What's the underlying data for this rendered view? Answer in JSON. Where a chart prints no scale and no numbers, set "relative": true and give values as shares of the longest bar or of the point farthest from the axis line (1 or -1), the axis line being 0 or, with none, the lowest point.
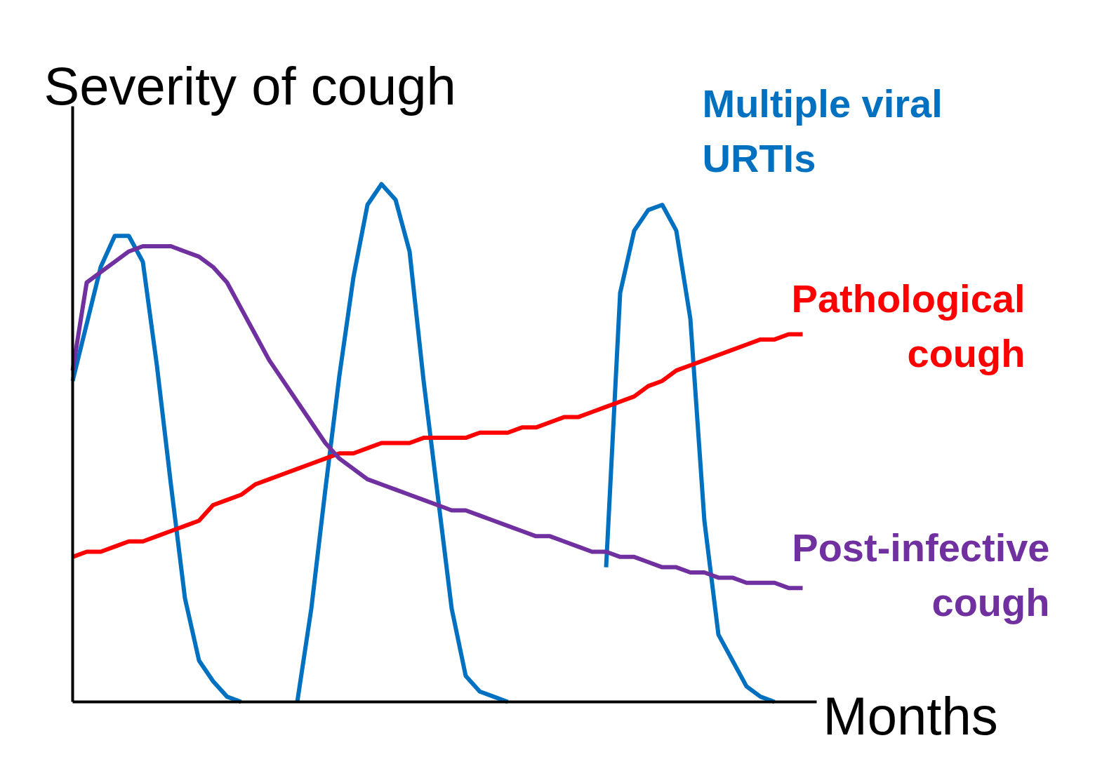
{
  "chart_data": {
    "type": "line",
    "relative": true,
    "ylabel": "Severity of cough",
    "xlabel": "Months",
    "line_style": "solid",
    "categories": [
      null,
      null,
      null,
      null,
      null,
      null,
      null,
      null,
      null,
      null,
      null,
      null,
      null,
      null,
      null,
      null,
      null,
      null,
      null,
      null,
      null,
      null,
      null,
      null,
      null,
      null,
      null,
      null,
      null,
      null,
      null,
      null,
      null,
      null,
      null,
      null,
      null,
      null,
      null,
      null,
      null,
      null,
      null,
      null,
      null,
      null,
      null,
      null,
      null,
      null,
      null,
      null,
      null
    ],
    "series": [
      {
        "name": "Multiple viral\nURTIs",
        "color": "#0070c0",
        "values": [
          0.62,
          0.73,
          0.84,
          0.9,
          0.9,
          0.85,
          0.65,
          0.42,
          0.2,
          0.08,
          0.04,
          0.01,
          0,
          null,
          null,
          null,
          0,
          0.18,
          0.41,
          0.63,
          0.82,
          0.96,
          1.0,
          0.97,
          0.87,
          0.62,
          0.4,
          0.18,
          0.05,
          0.02,
          0.01,
          0,
          null,
          null,
          null,
          null,
          null,
          null,
          0.26,
          0.79,
          0.91,
          0.95,
          0.96,
          0.91,
          0.74,
          0.35,
          0.13,
          0.08,
          0.03,
          0.01,
          0,
          null,
          null
        ]
      },
      {
        "name": "Pathological\ncough",
        "color": "#ff0000",
        "values": [
          0.28,
          0.29,
          0.29,
          0.3,
          0.31,
          0.31,
          0.32,
          0.33,
          0.34,
          0.35,
          0.38,
          0.39,
          0.4,
          0.42,
          0.43,
          0.44,
          0.45,
          0.46,
          0.47,
          0.48,
          0.48,
          0.49,
          0.5,
          0.5,
          0.5,
          0.51,
          0.51,
          0.51,
          0.51,
          0.52,
          0.52,
          0.52,
          0.53,
          0.53,
          0.54,
          0.55,
          0.55,
          0.56,
          0.57,
          0.58,
          0.59,
          0.61,
          0.62,
          0.64,
          0.65,
          0.66,
          0.67,
          0.68,
          0.69,
          0.7,
          0.7,
          0.71,
          0.71
        ]
      },
      {
        "name": "Post-infective\ncough",
        "color": "#7030a0",
        "values": [
          0.64,
          0.81,
          0.83,
          0.85,
          0.87,
          0.88,
          0.88,
          0.88,
          0.87,
          0.86,
          0.84,
          0.81,
          0.76,
          0.71,
          0.66,
          0.62,
          0.58,
          0.54,
          0.5,
          0.47,
          0.45,
          0.43,
          0.42,
          0.41,
          0.4,
          0.39,
          0.38,
          0.37,
          0.37,
          0.36,
          0.35,
          0.34,
          0.33,
          0.32,
          0.32,
          0.31,
          0.3,
          0.29,
          0.29,
          0.28,
          0.28,
          0.27,
          0.26,
          0.26,
          0.25,
          0.25,
          0.24,
          0.24,
          0.23,
          0.23,
          0.23,
          0.22,
          0.22
        ]
      }
    ]
  }
}
